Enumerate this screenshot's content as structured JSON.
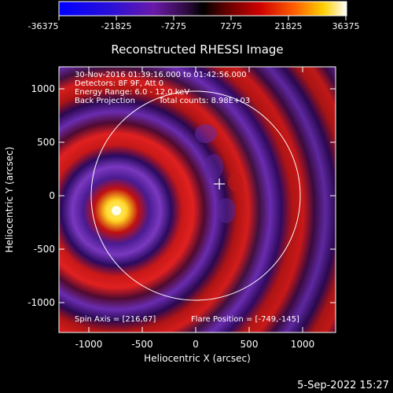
{
  "colorbar": {
    "ticks": [
      "-36375",
      "-21825",
      "-7275",
      "7275",
      "21825",
      "36375"
    ]
  },
  "plot": {
    "title": "Reconstructed RHESSI Image",
    "xlabel": "Heliocentric X (arcsec)",
    "ylabel": "Heliocentric Y (arcsec)",
    "xticks": [
      "-1000",
      "-500",
      "0",
      "500",
      "1000"
    ],
    "yticks": [
      "1000",
      "500",
      "0",
      "-500",
      "-1000"
    ]
  },
  "info": {
    "time": "30-Nov-2016 01:39:16.000 to 01:42:56.000",
    "detectors": "Detectors: 8F 9F, Att 0",
    "energy": "Energy Range: 6.0 - 12.0 keV",
    "method": "Back Projection",
    "counts": "Total counts: 8.98E+03",
    "spin_axis": "Spin Axis = [216,67]",
    "flare_position": "Flare Position = [-749,-145]"
  },
  "footer": {
    "date": "5-Sep-2022 15:27"
  },
  "colors": {
    "background": "#000000",
    "text": "#ffffff",
    "ring_dark": "#1a0050",
    "ring_purple": "#6a2cb0",
    "ring_red": "#d01818",
    "peak": "#ffff80"
  }
}
